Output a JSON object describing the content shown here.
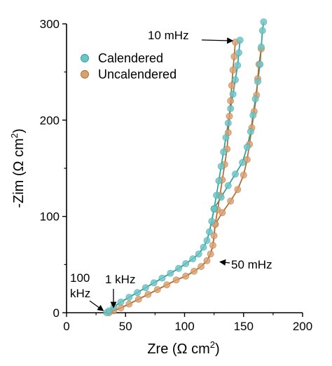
{
  "chart_data": {
    "type": "scatter",
    "title": "",
    "xlabel": "Zre (Ω cm²)",
    "ylabel": "-Zim (Ω cm²)",
    "xlabel_main": "Zre (Ω cm",
    "xlabel_sup": "2",
    "xlabel_close": ")",
    "ylabel_main": "-Zim (Ω cm",
    "ylabel_sup": "2",
    "ylabel_close": ")",
    "xlim": [
      0,
      200
    ],
    "ylim": [
      0,
      300
    ],
    "xticks": [
      0,
      50,
      100,
      150,
      200
    ],
    "yticks": [
      0,
      100,
      200,
      300
    ],
    "grid": false,
    "legend_position": "top-left",
    "series": [
      {
        "name": "Calendered",
        "color": "#2aa198",
        "marker_color": "#6ec3c7",
        "arc": [
          [
            34,
            0
          ],
          [
            36,
            2
          ],
          [
            40,
            6
          ],
          [
            46,
            11
          ],
          [
            53,
            16
          ],
          [
            60,
            21
          ],
          [
            67,
            26
          ],
          [
            74,
            31
          ],
          [
            81,
            36
          ],
          [
            88,
            41
          ],
          [
            95,
            46
          ],
          [
            101,
            51
          ],
          [
            107,
            56
          ],
          [
            112,
            61
          ],
          [
            116,
            68
          ],
          [
            119,
            75
          ],
          [
            121,
            84
          ],
          [
            123,
            95
          ],
          [
            125,
            108
          ]
        ],
        "branch_a": [
          [
            125,
            108
          ],
          [
            127,
            122
          ],
          [
            129,
            137
          ],
          [
            131,
            152
          ],
          [
            133,
            167
          ],
          [
            135,
            182
          ],
          [
            137,
            197
          ],
          [
            139,
            212
          ],
          [
            141,
            227
          ],
          [
            143,
            242
          ],
          [
            145,
            257
          ],
          [
            146,
            270
          ],
          [
            147,
            283
          ]
        ],
        "branch_b": [
          [
            125,
            108
          ],
          [
            131,
            120
          ],
          [
            137,
            132
          ],
          [
            143,
            144
          ],
          [
            149,
            156
          ],
          [
            153,
            172
          ],
          [
            156,
            188
          ],
          [
            158,
            205
          ],
          [
            160,
            222
          ],
          [
            162,
            240
          ],
          [
            164,
            258
          ],
          [
            165,
            276
          ],
          [
            166,
            293
          ],
          [
            167,
            302
          ]
        ],
        "label_point": [
          147,
          283
        ]
      },
      {
        "name": "Uncalendered",
        "color": "#b06a2c",
        "marker_color": "#d9a071",
        "arc": [
          [
            36,
            0
          ],
          [
            40,
            2
          ],
          [
            46,
            5
          ],
          [
            53,
            9
          ],
          [
            61,
            14
          ],
          [
            69,
            19
          ],
          [
            77,
            24
          ],
          [
            85,
            29
          ],
          [
            93,
            34
          ],
          [
            101,
            38
          ],
          [
            108,
            43
          ],
          [
            114,
            48
          ],
          [
            119,
            54
          ],
          [
            122,
            61
          ],
          [
            124,
            70
          ],
          [
            125,
            80
          ],
          [
            126,
            92
          ]
        ],
        "branch_a": [
          [
            126,
            92
          ],
          [
            128,
            107
          ],
          [
            130,
            122
          ],
          [
            132,
            138
          ],
          [
            134,
            154
          ],
          [
            136,
            170
          ],
          [
            137,
            187
          ],
          [
            138,
            204
          ],
          [
            139,
            220
          ],
          [
            140,
            236
          ],
          [
            141,
            252
          ],
          [
            142,
            266
          ],
          [
            143,
            281
          ]
        ],
        "branch_b": [
          [
            126,
            92
          ],
          [
            132,
            104
          ],
          [
            139,
            116
          ],
          [
            145,
            128
          ],
          [
            150,
            143
          ],
          [
            153,
            159
          ],
          [
            155,
            175
          ],
          [
            157,
            192
          ],
          [
            159,
            209
          ],
          [
            161,
            226
          ],
          [
            162,
            243
          ],
          [
            163,
            258
          ],
          [
            165,
            274
          ]
        ]
      }
    ],
    "annotations": [
      {
        "text": "10 mHz",
        "target": [
          143,
          281
        ]
      },
      {
        "text": "50 mHz",
        "target": [
          126,
          55
        ]
      },
      {
        "text": "1 kHz",
        "target": [
          38,
          2
        ]
      },
      {
        "text": "100",
        "text2": "kHz",
        "target": [
          34,
          0
        ]
      }
    ]
  }
}
